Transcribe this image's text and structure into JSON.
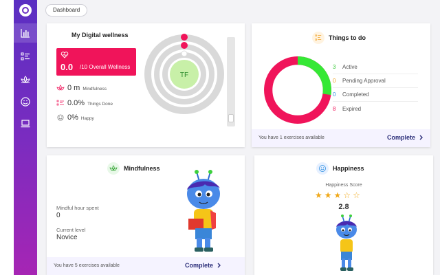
{
  "breadcrumb": "Dashboard",
  "colors": {
    "accent": "#f0145a",
    "green": "#35e835",
    "sidebar": "#6a2ec3",
    "cta": "#2c2f7a"
  },
  "sidebar": {
    "items": [
      {
        "icon": "bar-chart-icon",
        "active": true
      },
      {
        "icon": "checklist-icon",
        "active": false
      },
      {
        "icon": "lotus-icon",
        "active": false
      },
      {
        "icon": "smiley-icon",
        "active": false
      },
      {
        "icon": "laptop-icon",
        "active": false
      }
    ]
  },
  "wellness": {
    "title": "My Digital wellness",
    "score": "0.0",
    "score_suffix": "/10 Overall Wellness",
    "mindfulness_value": "0 m",
    "mindfulness_label": "Mindfulness",
    "things_value": "0.0%",
    "things_label": "Things Done",
    "happy_value": "0%",
    "happy_label": "Happy",
    "avatar_initials": "TF"
  },
  "todo": {
    "title": "Things to do",
    "legend": [
      {
        "count": "3",
        "label": "Active",
        "color": "#35c935"
      },
      {
        "count": "0",
        "label": "Pending Approval",
        "color": "#f0a020"
      },
      {
        "count": "0",
        "label": "Completed",
        "color": "#2a8ee0"
      },
      {
        "count": "8",
        "label": "Expired",
        "color": "#f0145a"
      }
    ],
    "footer_msg": "You have 1 exercises available",
    "cta": "Complete"
  },
  "mindfulness": {
    "title": "Mindfulness",
    "hour_label": "Mindful hour spent",
    "hour_value": "0",
    "level_label": "Current level",
    "level_value": "Novice",
    "footer_msg": "You have 5 exercises available",
    "cta": "Complete"
  },
  "happiness": {
    "title": "Happiness",
    "score_label": "Happiness Score",
    "score": "2.8",
    "stars": "2.8 of 5"
  }
}
